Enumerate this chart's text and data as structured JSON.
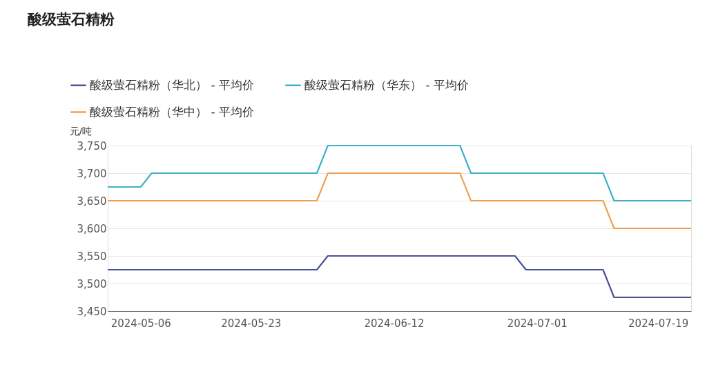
{
  "chart_data": {
    "type": "line",
    "title": "酸级萤石精粉",
    "ylabel": "元/吨",
    "categories": [
      null,
      null,
      null,
      "2024-05-06",
      null,
      null,
      null,
      null,
      null,
      null,
      null,
      null,
      null,
      "2024-05-23",
      null,
      null,
      null,
      null,
      null,
      null,
      null,
      null,
      null,
      null,
      null,
      null,
      "2024-06-12",
      null,
      null,
      null,
      null,
      null,
      null,
      null,
      null,
      null,
      null,
      null,
      null,
      "2024-07-01",
      null,
      null,
      null,
      null,
      null,
      null,
      null,
      null,
      null,
      null,
      "2024-07-19",
      null,
      null,
      null
    ],
    "series": [
      {
        "name": "酸级萤石精粉（华北） - 平均价",
        "color": "#4a5199",
        "values": [
          3525,
          3525,
          3525,
          3525,
          3525,
          3525,
          3525,
          3525,
          3525,
          3525,
          3525,
          3525,
          3525,
          3525,
          3525,
          3525,
          3525,
          3525,
          3525,
          3525,
          3550,
          3550,
          3550,
          3550,
          3550,
          3550,
          3550,
          3550,
          3550,
          3550,
          3550,
          3550,
          3550,
          3550,
          3550,
          3550,
          3550,
          3550,
          3525,
          3525,
          3525,
          3525,
          3525,
          3525,
          3525,
          3525,
          3475,
          3475,
          3475,
          3475,
          3475,
          3475,
          3475,
          3475
        ]
      },
      {
        "name": "酸级萤石精粉（华东） - 平均价",
        "color": "#3fb1c8",
        "values": [
          3675,
          3675,
          3675,
          3675,
          3700,
          3700,
          3700,
          3700,
          3700,
          3700,
          3700,
          3700,
          3700,
          3700,
          3700,
          3700,
          3700,
          3700,
          3700,
          3700,
          3750,
          3750,
          3750,
          3750,
          3750,
          3750,
          3750,
          3750,
          3750,
          3750,
          3750,
          3750,
          3750,
          3700,
          3700,
          3700,
          3700,
          3700,
          3700,
          3700,
          3700,
          3700,
          3700,
          3700,
          3700,
          3700,
          3650,
          3650,
          3650,
          3650,
          3650,
          3650,
          3650,
          3650
        ]
      },
      {
        "name": "酸级萤石精粉（华中） - 平均价",
        "color": "#f0a050",
        "values": [
          3650,
          3650,
          3650,
          3650,
          3650,
          3650,
          3650,
          3650,
          3650,
          3650,
          3650,
          3650,
          3650,
          3650,
          3650,
          3650,
          3650,
          3650,
          3650,
          3650,
          3700,
          3700,
          3700,
          3700,
          3700,
          3700,
          3700,
          3700,
          3700,
          3700,
          3700,
          3700,
          3700,
          3650,
          3650,
          3650,
          3650,
          3650,
          3650,
          3650,
          3650,
          3650,
          3650,
          3650,
          3650,
          3650,
          3600,
          3600,
          3600,
          3600,
          3600,
          3600,
          3600,
          3600
        ]
      }
    ],
    "ylim": [
      3450,
      3750
    ],
    "yticks": [
      {
        "value": 3450,
        "label": "3,450"
      },
      {
        "value": 3500,
        "label": "3,500"
      },
      {
        "value": 3550,
        "label": "3,550"
      },
      {
        "value": 3600,
        "label": "3,600"
      },
      {
        "value": 3650,
        "label": "3,650"
      },
      {
        "value": 3700,
        "label": "3,700"
      },
      {
        "value": 3750,
        "label": "3,750"
      }
    ],
    "grid": "y",
    "legend": "top left",
    "marker": "none",
    "line_style": "solid"
  }
}
